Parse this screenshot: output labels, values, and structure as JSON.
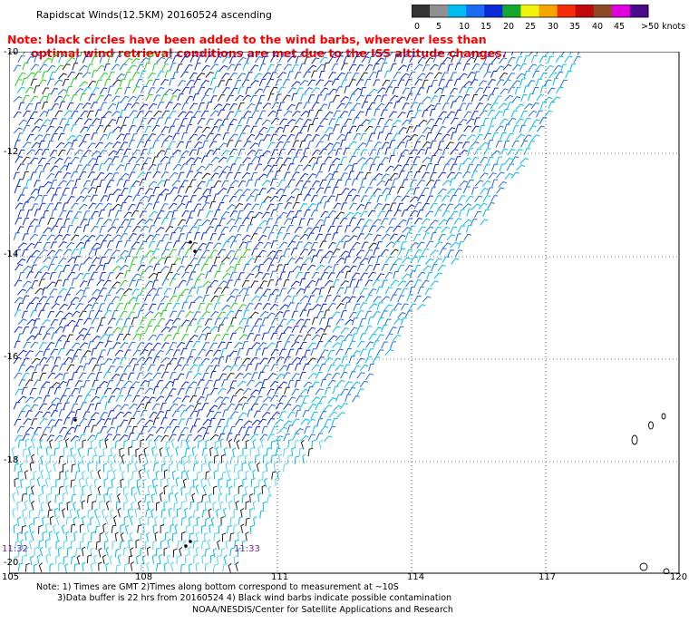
{
  "header": {
    "title": "Rapidscat Winds(12.5KM) 20160524 ascending",
    "note_line1": "Note: black circles have been added to the wind barbs, wherever less than",
    "note_line2": "      optimal wind retrieval conditions are met due to the ISS altitude changes."
  },
  "legend": {
    "labels": [
      "0",
      "5",
      "10",
      "15",
      "20",
      "25",
      "30",
      "35",
      "40",
      "45",
      ">50 knots"
    ],
    "colors": [
      "#333333",
      "#909090",
      "#00bcef",
      "#1b6cf0",
      "#0a2bd6",
      "#14a82e",
      "#f2f20a",
      "#f5a400",
      "#f52d0a",
      "#c20a0a",
      "#8a4a24",
      "#e000e0",
      "#4b0a8c"
    ]
  },
  "axes": {
    "y_labels": [
      "-10",
      "-12",
      "-14",
      "-16",
      "-18",
      "-20"
    ],
    "x_labels": [
      "105",
      "108",
      "111",
      "114",
      "117",
      "120"
    ]
  },
  "times": [
    "11:32",
    "11:33"
  ],
  "footer": {
    "line1": "Note: 1) Times are GMT 2)Times along bottom correspond to measurement at ~10S",
    "line2": "3)Data buffer is 22 hrs from 20160524 4) Black wind barbs indicate possible contamination",
    "line3": "NOAA/NESDIS/Center for Satellite Applications and Research"
  }
}
